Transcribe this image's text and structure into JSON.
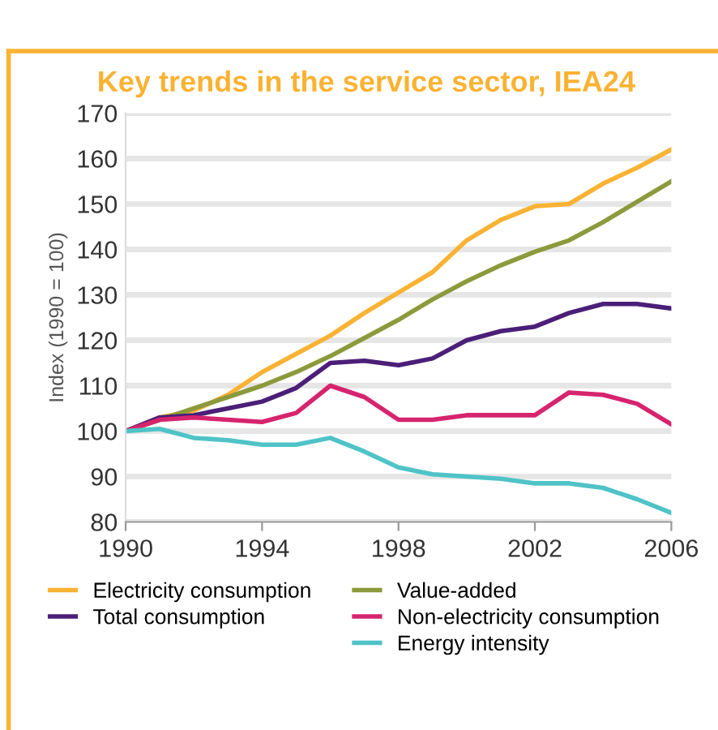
{
  "chart_data": {
    "type": "line",
    "title": "Key trends in the service sector, IEA24",
    "ylabel": "Index (1990 = 100)",
    "x": [
      1990,
      1991,
      1992,
      1993,
      1994,
      1995,
      1996,
      1997,
      1998,
      1999,
      2000,
      2001,
      2002,
      2003,
      2004,
      2005,
      2006
    ],
    "series": [
      {
        "name": "Electricity consumption",
        "color": "#f9b233",
        "values": [
          100,
          103,
          104.5,
          108,
          113,
          117,
          121,
          126,
          130.5,
          135,
          142,
          146.5,
          149.5,
          150,
          154.5,
          158,
          162
        ]
      },
      {
        "name": "Value-added",
        "color": "#8c9a3c",
        "values": [
          100,
          102.5,
          105,
          107.5,
          110,
          113,
          116.5,
          120.5,
          124.5,
          129,
          133,
          136.5,
          139.5,
          142,
          146,
          150.5,
          155
        ]
      },
      {
        "name": "Total consumption",
        "color": "#4b1f78",
        "values": [
          100,
          103,
          103.5,
          105,
          106.5,
          109.5,
          115,
          115.5,
          114.5,
          116,
          120,
          122,
          123,
          126,
          128,
          128,
          127
        ]
      },
      {
        "name": "Non-electricity consumption",
        "color": "#d6246e",
        "values": [
          100,
          102.5,
          103,
          102.5,
          102,
          104,
          110,
          107.5,
          102.5,
          102.5,
          103.5,
          103.5,
          103.5,
          108.5,
          108,
          106,
          101.5
        ]
      },
      {
        "name": "Energy intensity",
        "color": "#4fc3c7",
        "values": [
          100,
          100.5,
          98.5,
          98,
          97,
          97,
          98.5,
          95.5,
          92,
          90.5,
          90,
          89.5,
          88.5,
          88.5,
          87.5,
          85,
          82
        ]
      }
    ],
    "xlim": [
      1990,
      2006
    ],
    "xticks": [
      1990,
      1994,
      1998,
      2002,
      2006
    ],
    "ylim": [
      80,
      170
    ],
    "yticks": [
      80,
      90,
      100,
      110,
      120,
      130,
      140,
      150,
      160,
      170
    ],
    "grid": "y",
    "legend": "bottom",
    "marker": "none",
    "line_style": "solid"
  }
}
